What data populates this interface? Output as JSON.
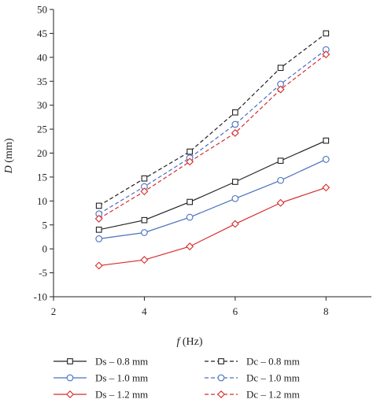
{
  "chart_data": {
    "type": "line",
    "xlabel": {
      "italic": "f",
      "rest": " (Hz)"
    },
    "ylabel": {
      "italic": "D",
      "rest": " (mm)"
    },
    "xlim": [
      2,
      9
    ],
    "ylim": [
      -10,
      50
    ],
    "xticks": [
      2,
      4,
      6,
      8
    ],
    "yticks": [
      -10,
      -5,
      0,
      5,
      10,
      15,
      20,
      25,
      30,
      35,
      40,
      45,
      50
    ],
    "grid": false,
    "legend_position": "bottom",
    "series": [
      {
        "name": "Ds – 0.8 mm",
        "color": "#222222",
        "dash": "solid",
        "marker": "square",
        "x": [
          3,
          4,
          5,
          6,
          7,
          8
        ],
        "y": [
          4.0,
          6.0,
          9.8,
          14.0,
          18.4,
          22.6
        ]
      },
      {
        "name": "Dc – 0.8 mm",
        "color": "#222222",
        "dash": "dashed",
        "marker": "square",
        "x": [
          3,
          4,
          5,
          6,
          7,
          8
        ],
        "y": [
          9.0,
          14.7,
          20.3,
          28.5,
          37.8,
          45.0
        ]
      },
      {
        "name": "Ds – 1.0 mm",
        "color": "#4a6fc0",
        "dash": "solid",
        "marker": "circle",
        "x": [
          3,
          4,
          5,
          6,
          7,
          8
        ],
        "y": [
          2.1,
          3.4,
          6.6,
          10.5,
          14.3,
          18.7
        ]
      },
      {
        "name": "Dc – 1.0 mm",
        "color": "#4a6fc0",
        "dash": "dashed",
        "marker": "circle",
        "x": [
          3,
          4,
          5,
          6,
          7,
          8
        ],
        "y": [
          7.3,
          13.0,
          19.0,
          26.0,
          34.4,
          41.6
        ]
      },
      {
        "name": "Ds – 1.2 mm",
        "color": "#d62c2c",
        "dash": "solid",
        "marker": "diamond",
        "x": [
          3,
          4,
          5,
          6,
          7,
          8
        ],
        "y": [
          -3.5,
          -2.3,
          0.5,
          5.2,
          9.6,
          12.8
        ]
      },
      {
        "name": "Dc – 1.2 mm",
        "color": "#d62c2c",
        "dash": "dashed",
        "marker": "diamond",
        "x": [
          3,
          4,
          5,
          6,
          7,
          8
        ],
        "y": [
          6.3,
          12.0,
          18.2,
          24.2,
          33.3,
          40.6
        ]
      }
    ]
  }
}
